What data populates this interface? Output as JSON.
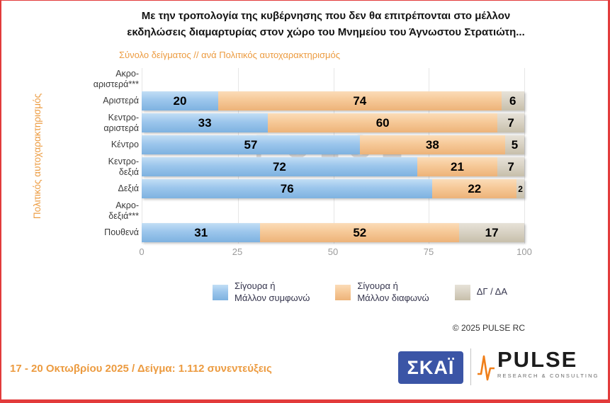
{
  "header": {
    "title": "Με την τροπολογία της κυβέρνησης που δεν θα επιτρέπονται στο μέλλον\nεκδηλώσεις διαμαρτυρίας στον χώρο του Μνημείου του Άγνωστου Στρατιώτη...",
    "subtitle": "Σύνολο δείγματος // ανά Πολιτικός αυτοχαρακτηρισμός"
  },
  "chart_data": {
    "type": "bar",
    "orientation": "horizontal",
    "stacked": true,
    "title": "Με την τροπολογία της κυβέρνησης που δεν θα επιτρέπονται στο μέλλον εκδηλώσεις διαμαρτυρίας στον χώρο του Μνημείου του Άγνωστου Στρατιώτη...",
    "subtitle": "Σύνολο δείγματος // ανά Πολιτικός αυτοχαρακτηρισμός",
    "ylabel": "Πολιτικός αυτοχαρακτηρισμός",
    "xlabel": "",
    "xlim": [
      0,
      100
    ],
    "x_ticks": [
      0,
      25,
      50,
      75,
      100
    ],
    "grid": true,
    "legend_position": "bottom",
    "categories": [
      "Ακρο-\nαριστερά***",
      "Αριστερά",
      "Κεντρο-\nαριστερά",
      "Κέντρο",
      "Κεντρο-\nδεξιά",
      "Δεξιά",
      "Ακρο-\nδεξιά***",
      "Πουθενά"
    ],
    "series": [
      {
        "name": "Σίγουρα ή Μάλλον συμφωνώ",
        "color": "#9CC6EC",
        "values": [
          null,
          20,
          33,
          57,
          72,
          76,
          null,
          31
        ]
      },
      {
        "name": "Σίγουρα ή Μάλλον διαφωνώ",
        "color": "#F6C998",
        "values": [
          null,
          74,
          60,
          38,
          21,
          22,
          null,
          52
        ]
      },
      {
        "name": "ΔΓ / ΔΑ",
        "color": "#D9D3C5",
        "values": [
          null,
          6,
          7,
          5,
          7,
          2,
          null,
          17
        ]
      }
    ]
  },
  "legend": {
    "items": [
      {
        "label": "Σίγουρα ή\nΜάλλον συμφωνώ",
        "color": "#9CC6EC"
      },
      {
        "label": "Σίγουρα ή\nΜάλλον διαφωνώ",
        "color": "#F6C998"
      },
      {
        "label": "ΔΓ / ΔΑ",
        "color": "#D9D3C5"
      }
    ]
  },
  "watermark": {
    "line1": "PULSE",
    "line2": "RESEARCH & CONSULTING"
  },
  "footer": {
    "copyright": "©  2025  PULSE RC",
    "survey_info": "17 - 20 Οκτωβρίου 2025  /  Δείγμα:  1.112 συνεντεύξεις",
    "skai_logo_text": "ΣΚΑΪ",
    "pulse_logo_text": "PULSE",
    "pulse_logo_subtext": "RESEARCH & CONSULTING"
  },
  "colors": {
    "frame_red": "#E23B3B",
    "accent_orange": "#EC9B40",
    "skai_blue": "#3B55A6",
    "pulse_wave_orange": "#F07F1A"
  }
}
